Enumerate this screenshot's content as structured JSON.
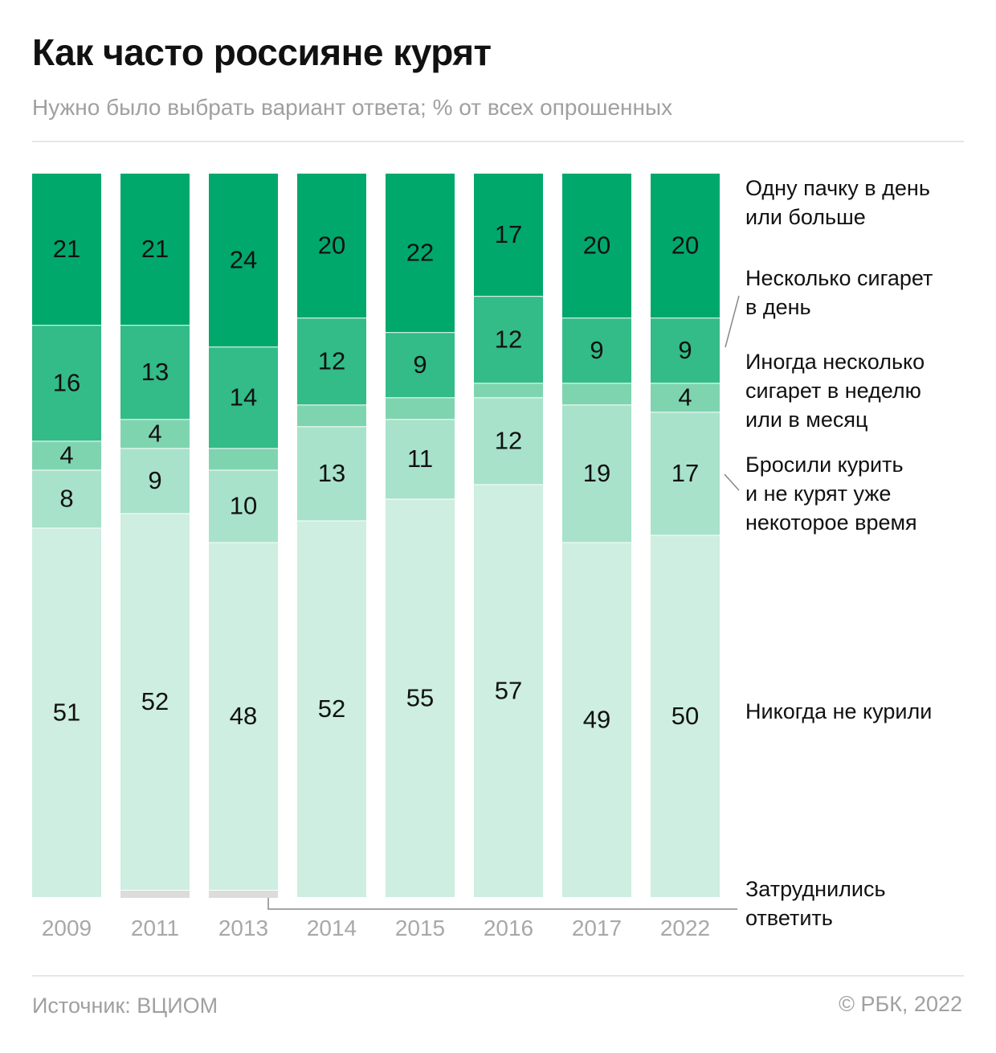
{
  "title": "Как часто россияне курят",
  "subtitle": "Нужно было выбрать вариант ответа; % от всех опрошенных",
  "source": "Источник: ВЦИОМ",
  "copyright": "© РБК, 2022",
  "legend": {
    "pack": "Одну пачку в день\nили больше",
    "several_day": "Несколько сигарет\nв день",
    "sometimes": "Иногда несколько\nсигарет в неделю\nили в месяц",
    "quit": "Бросили курить\nи не курят уже\nнекоторое время",
    "never": "Никогда не курили",
    "hard": "Затруднились\nответить"
  },
  "colors": {
    "pack": "#00a86b",
    "several_day": "#33bb88",
    "sometimes": "#7fd4b0",
    "quit": "#a8e2cb",
    "never": "#cdeee0",
    "hard": "#dcdcdc",
    "leader": "#888888"
  },
  "chart_data": {
    "type": "bar",
    "stacked": true,
    "categories": [
      "2009",
      "2011",
      "2013",
      "2014",
      "2015",
      "2016",
      "2017",
      "2022"
    ],
    "series": [
      {
        "name": "Одну пачку в день или больше",
        "key": "pack",
        "values": [
          21,
          21,
          24,
          20,
          22,
          17,
          20,
          20
        ],
        "labels": [
          "21",
          "21",
          "24",
          "20",
          "22",
          "17",
          "20",
          "20"
        ]
      },
      {
        "name": "Несколько сигарет в день",
        "key": "several_day",
        "values": [
          16,
          13,
          14,
          12,
          9,
          12,
          9,
          9
        ],
        "labels": [
          "16",
          "13",
          "14",
          "12",
          "9",
          "12",
          "9",
          "9"
        ]
      },
      {
        "name": "Иногда несколько сигарет в неделю или в месяц",
        "key": "sometimes",
        "values": [
          4,
          4,
          3,
          3,
          3,
          2,
          3,
          4
        ],
        "labels": [
          "4",
          "4",
          "",
          "",
          "",
          "",
          "",
          "4"
        ]
      },
      {
        "name": "Бросили курить и не курят уже некоторое время",
        "key": "quit",
        "values": [
          8,
          9,
          10,
          13,
          11,
          12,
          19,
          17
        ],
        "labels": [
          "8",
          "9",
          "10",
          "13",
          "11",
          "12",
          "19",
          "17"
        ]
      },
      {
        "name": "Никогда не курили",
        "key": "never",
        "values": [
          51,
          52,
          48,
          52,
          55,
          57,
          49,
          50
        ],
        "labels": [
          "51",
          "52",
          "48",
          "52",
          "55",
          "57",
          "49",
          "50"
        ]
      },
      {
        "name": "Затруднились ответить",
        "key": "hard",
        "values": [
          0,
          1,
          1,
          0,
          0,
          0,
          0,
          0
        ],
        "labels": [
          "",
          "",
          "",
          "",
          "",
          "",
          "",
          ""
        ]
      }
    ],
    "ylim": [
      0,
      100
    ]
  }
}
